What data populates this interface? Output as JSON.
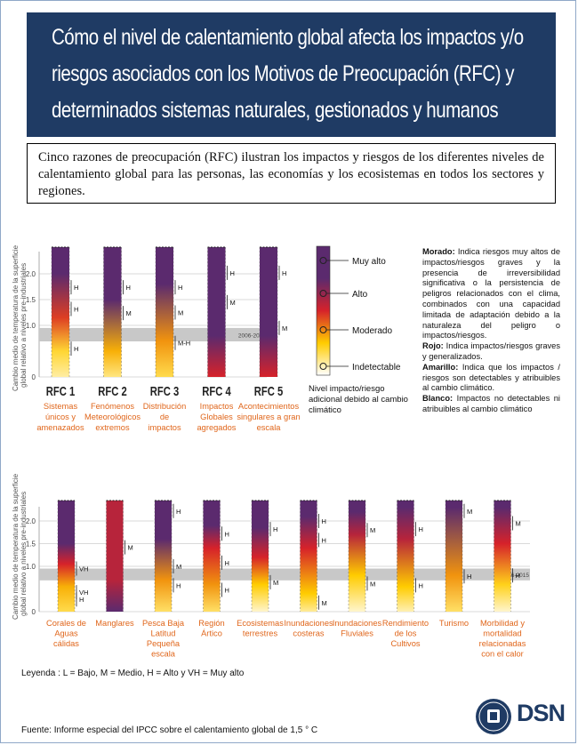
{
  "title": "Cómo el nivel de calentamiento global afecta los impactos y/o riesgos asociados con los Motivos de Preocupación (RFC) y determinados sistemas naturales, gestionados y humanos",
  "intro": "Cinco razones de preocupación (RFC) ilustran los impactos y riesgos de los diferentes niveles de calentamiento global para las personas, las economías y los ecosistemas en todos los sectores y regiones.",
  "y_axis_label_1": "Cambio medio de temperatura de la superficie",
  "y_axis_label_2": "global relativo a niveles pre-industriales",
  "period_label": "2006-2015",
  "colors": {
    "very_high": "#5b2a6e",
    "high": "#d6222a",
    "moderate": "#ffcc00",
    "undetectable": "#ffffff",
    "band": "#c8c8c8",
    "label_orange": "#e0661b",
    "title_bg": "#1f3b64"
  },
  "scale_legend": {
    "levels": [
      "Muy alto",
      "Alto",
      "Moderado",
      "Indetectable"
    ],
    "caption_1": "Nivel impacto/riesgo",
    "caption_2": "adicional debido al cambio",
    "caption_3": "climático"
  },
  "notes": [
    {
      "term": "Morado:",
      "text": " Indica riesgos muy altos de impactos/riesgos graves y la presencia de irreversibilidad significativa o la persistencia de peligros relacionados con el clima, combinados con una capacidad limitada de adaptación debido a la naturaleza del peligro o impactos/riesgos."
    },
    {
      "term": "Rojo:",
      "text": " Indica impactos/riesgos graves y generalizados."
    },
    {
      "term": "Amarillo:",
      "text": " Indica que los impactos / riesgos son detectables y atribuibles al cambio climático."
    },
    {
      "term": "Blanco:",
      "text": " Impactos no detectables ni atribuibles al cambio climático"
    }
  ],
  "legend_text": "Leyenda : L = Bajo, M = Medio, H = Alto y VH = Muy alto",
  "source": "Fuente: Informe especial del IPCC sobre el calentamiento global de 1,5 ° C",
  "logo_text": "DSN",
  "chart_data": [
    {
      "type": "diagram",
      "y_ticks": [
        "2.0",
        "1.5",
        "1.0",
        "0"
      ],
      "columns": [
        {
          "code": "RFC 1",
          "label": [
            "Sistemas",
            "únicos y",
            "amenazados"
          ],
          "top": "very_high",
          "stops": [
            [
              0,
              0.18
            ],
            [
              0.5,
              0.4
            ],
            [
              1.15,
              0.75
            ],
            [
              2.0,
              1.0
            ]
          ],
          "markers": [
            {
              "text": "H",
              "y": 1.74
            },
            {
              "text": "H",
              "y": 1.32
            },
            {
              "text": "H",
              "y": 0.55
            }
          ]
        },
        {
          "code": "RFC 2",
          "label": [
            "Fenómenos",
            "Meteorológicos",
            "extremos"
          ],
          "top": "high",
          "stops": [
            [
              0,
              0.25
            ],
            [
              0.5,
              0.55
            ],
            [
              1.5,
              1.0
            ]
          ],
          "markers": [
            {
              "text": "H",
              "y": 1.74
            },
            {
              "text": "M",
              "y": 1.24
            }
          ]
        },
        {
          "code": "RFC 3",
          "label": [
            "Distribución",
            "de",
            "impactos"
          ],
          "top": "high",
          "stops": [
            [
              0,
              0.35
            ],
            [
              0.7,
              0.6
            ],
            [
              1.8,
              1.0
            ]
          ],
          "markers": [
            {
              "text": "H",
              "y": 1.74
            },
            {
              "text": "M",
              "y": 1.25
            },
            {
              "text": "M-H",
              "y": 0.66
            }
          ]
        },
        {
          "code": "RFC 4",
          "label": [
            "Impactos",
            "Globales",
            "agregados"
          ],
          "top": "high",
          "stops": [
            [
              0,
              0.8
            ],
            [
              0.8,
              1.0
            ]
          ],
          "markers": [
            {
              "text": "H",
              "y": 2.02
            },
            {
              "text": "M",
              "y": 1.45
            }
          ]
        },
        {
          "code": "RFC 5",
          "label": [
            "Acontecimientos",
            "singulares a gran",
            "escala"
          ],
          "top": "high",
          "stops": [
            [
              0,
              0.8
            ],
            [
              0.8,
              1.0
            ]
          ],
          "markers": [
            {
              "text": "H",
              "y": 2.02
            },
            {
              "text": "M",
              "y": 0.95
            }
          ]
        }
      ]
    },
    {
      "type": "diagram",
      "y_ticks": [
        "2.0",
        "1.5",
        "1.0",
        "0"
      ],
      "columns": [
        {
          "code": "",
          "label": [
            "Corales de",
            "Aguas",
            "cálidas"
          ],
          "top": "very_high",
          "stops": [
            [
              0,
              0.35
            ],
            [
              0.55,
              0.55
            ],
            [
              1.05,
              0.8
            ],
            [
              1.5,
              1.0
            ]
          ],
          "markers": [
            {
              "text": "VH",
              "y": 0.95
            },
            {
              "text": "VH",
              "y": 0.43
            },
            {
              "text": "H",
              "y": 0.27
            }
          ]
        },
        {
          "code": "",
          "label": [
            "Manglares"
          ],
          "top": "moderate",
          "stops": [
            [
              0,
              1.0
            ],
            [
              0.7,
              0.85
            ]
          ],
          "markers": [
            {
              "text": "M",
              "y": 1.42
            }
          ]
        },
        {
          "code": "",
          "label": [
            "Pesca Baja",
            "Latitud",
            "Pequeña",
            "escala"
          ],
          "top": "very_high",
          "stops": [
            [
              0,
              0.3
            ],
            [
              0.7,
              0.6
            ],
            [
              1.6,
              1.0
            ]
          ],
          "markers": [
            {
              "text": "H",
              "y": 2.22
            },
            {
              "text": "M",
              "y": 1.0
            },
            {
              "text": "H",
              "y": 0.58
            }
          ]
        },
        {
          "code": "",
          "label": [
            "Región",
            "Ártico"
          ],
          "top": "very_high",
          "stops": [
            [
              0,
              0.3
            ],
            [
              0.6,
              0.6
            ],
            [
              1.4,
              0.8
            ],
            [
              1.9,
              1.0
            ]
          ],
          "markers": [
            {
              "text": "H",
              "y": 1.72
            },
            {
              "text": "H",
              "y": 1.08
            },
            {
              "text": "H",
              "y": 0.48
            }
          ]
        },
        {
          "code": "",
          "label": [
            "Ecosistemas",
            "terrestres"
          ],
          "top": "high",
          "stops": [
            [
              0,
              0.1
            ],
            [
              0.6,
              0.5
            ],
            [
              1.2,
              0.8
            ],
            [
              1.85,
              1.0
            ]
          ],
          "markers": [
            {
              "text": "H",
              "y": 1.82
            },
            {
              "text": "M",
              "y": 0.65
            }
          ]
        },
        {
          "code": "",
          "label": [
            "Inundaciones",
            "costeras"
          ],
          "top": "very_high",
          "stops": [
            [
              0,
              0.2
            ],
            [
              0.4,
              0.5
            ],
            [
              1.4,
              0.8
            ],
            [
              2.1,
              1.0
            ]
          ],
          "markers": [
            {
              "text": "H",
              "y": 2.0
            },
            {
              "text": "H",
              "y": 1.58
            },
            {
              "text": "M",
              "y": 0.2
            }
          ]
        },
        {
          "code": "",
          "label": [
            "Inundaciones",
            "Fluviales"
          ],
          "top": "high",
          "stops": [
            [
              0,
              0.1
            ],
            [
              0.8,
              0.5
            ],
            [
              1.7,
              0.85
            ],
            [
              2.2,
              1.0
            ]
          ],
          "markers": [
            {
              "text": "M",
              "y": 1.8
            },
            {
              "text": "M",
              "y": 0.62
            }
          ]
        },
        {
          "code": "",
          "label": [
            "Rendimiento",
            "de los",
            "Cultivos"
          ],
          "top": "high",
          "stops": [
            [
              0,
              0.15
            ],
            [
              0.55,
              0.5
            ],
            [
              1.6,
              0.85
            ],
            [
              2.3,
              1.0
            ]
          ],
          "markers": [
            {
              "text": "H",
              "y": 1.82
            },
            {
              "text": "H",
              "y": 0.58
            }
          ]
        },
        {
          "code": "",
          "label": [
            "Turismo"
          ],
          "top": "high",
          "stops": [
            [
              0,
              0.3
            ],
            [
              0.8,
              0.6
            ],
            [
              2.3,
              1.0
            ]
          ],
          "markers": [
            {
              "text": "M",
              "y": 2.22
            },
            {
              "text": "H",
              "y": 0.78
            }
          ]
        },
        {
          "code": "",
          "label": [
            "Morbilidad y",
            "mortalidad",
            "relacionadas",
            "con el calor"
          ],
          "top": "high",
          "stops": [
            [
              0,
              0.1
            ],
            [
              0.6,
              0.45
            ],
            [
              1.5,
              0.8
            ],
            [
              2.3,
              1.0
            ]
          ],
          "markers": [
            {
              "text": "M",
              "y": 1.95
            },
            {
              "text": "H",
              "y": 0.8
            }
          ]
        }
      ]
    }
  ]
}
